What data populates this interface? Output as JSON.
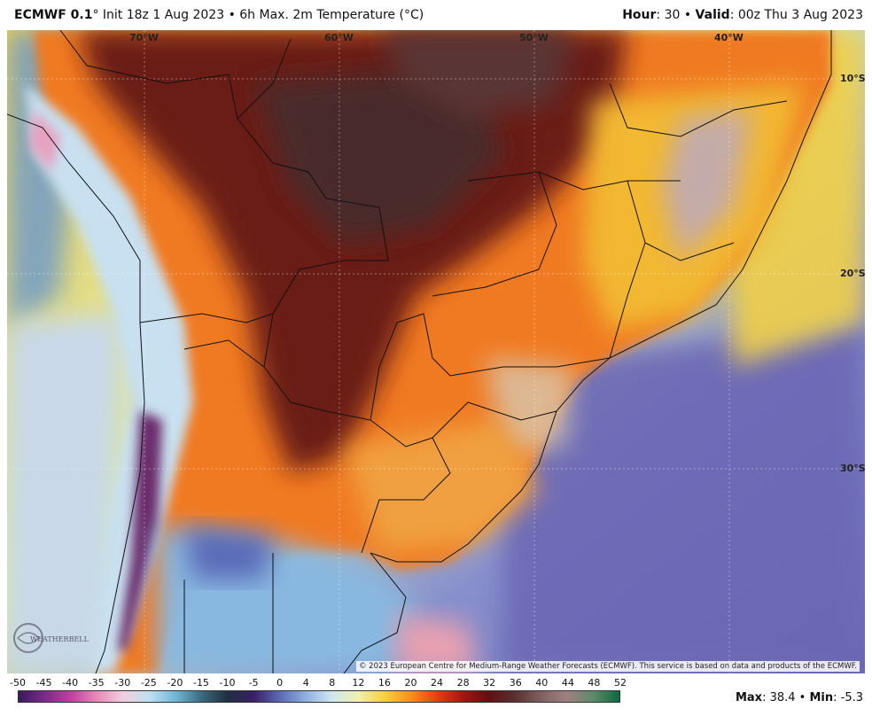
{
  "header": {
    "model": "ECMWF 0.1",
    "title_rest": "° Init 18z 1 Aug 2023 • 6h Max. 2m Temperature (°C)",
    "hour_label": "Hour",
    "hour_value": ": 30 • ",
    "valid_label": "Valid",
    "valid_value": ": 00z Thu 3 Aug 2023"
  },
  "map": {
    "lon_labels": [
      "70°W",
      "60°W",
      "50°W",
      "40°W"
    ],
    "lat_labels": [
      "10°S",
      "20°S",
      "30°S"
    ],
    "logo_text": "WEATHERBELL",
    "copyright": "© 2023 European Centre for Medium-Range Weather Forecasts (ECMWF). This service is based on data and products of the ECMWF."
  },
  "legend": {
    "ticks": [
      "-50",
      "-45",
      "-40",
      "-35",
      "-30",
      "-25",
      "-20",
      "-15",
      "-10",
      "-5",
      "0",
      "4",
      "8",
      "12",
      "16",
      "20",
      "24",
      "28",
      "32",
      "36",
      "40",
      "44",
      "48",
      "52"
    ],
    "gradient_colors": [
      "#3a1a5c",
      "#7a2a8a",
      "#c040a0",
      "#e88ab8",
      "#f0d0e0",
      "#c0e0f0",
      "#70b8d8",
      "#3a6a80",
      "#1f3040",
      "#3b1f66",
      "#5b6ab8",
      "#90b0e0",
      "#d0e8f0",
      "#f0f0b0",
      "#f8d040",
      "#f89020",
      "#e84010",
      "#a01810",
      "#601010",
      "#5a3030",
      "#806060",
      "#a08080",
      "#5c8a6a",
      "#0a6a3a"
    ]
  },
  "stats": {
    "max_label": "Max",
    "max_value": ": 38.4 • ",
    "min_label": "Min",
    "min_value": ": -5.3"
  }
}
